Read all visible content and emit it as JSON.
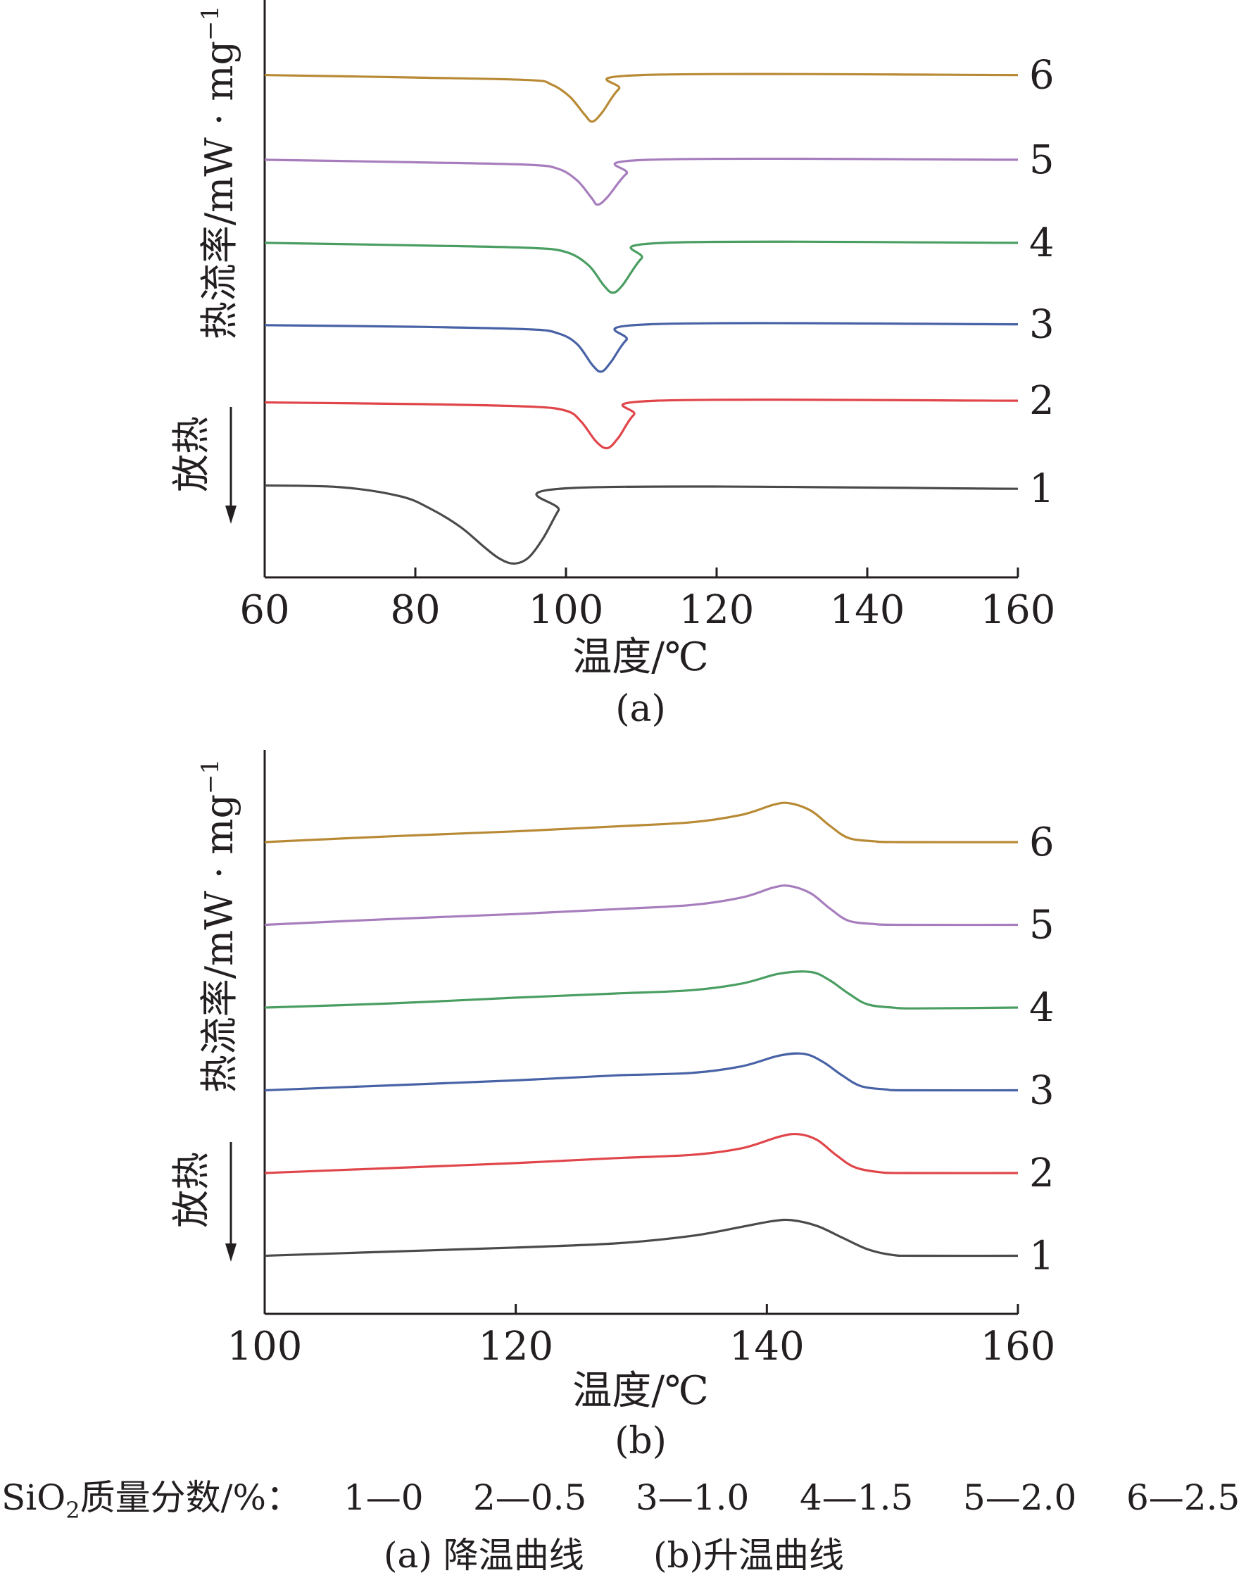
{
  "colors": {
    "axis": "#231f20",
    "text": "#231f20",
    "s1": "#4a4a4a",
    "s2": "#e0454a",
    "s3": "#4862a6",
    "s4": "#4a9e62",
    "s5": "#a77dbd",
    "s6": "#b88a35"
  },
  "chart_data": [
    {
      "type": "line",
      "panel_label": "(a)",
      "xlabel": "温度/℃",
      "ylabel": "热流率/mW · mg",
      "ylabel_sup": "−1",
      "exo_label": "放热",
      "xlim": [
        60,
        160
      ],
      "xticks": [
        "60",
        "80",
        "100",
        "120",
        "140",
        "160"
      ],
      "series": [
        {
          "name": "1",
          "color_key": "s1",
          "x": [
            60,
            70,
            78,
            82,
            86,
            89,
            91,
            93,
            95,
            97,
            99,
            101,
            160
          ],
          "y": [
            1.25,
            1.23,
            1.12,
            0.97,
            0.75,
            0.52,
            0.38,
            0.31,
            0.38,
            0.62,
            0.95,
            1.22,
            1.21
          ]
        },
        {
          "name": "2",
          "color_key": "s2",
          "x": [
            60,
            80,
            95,
            100,
            102,
            104,
            105.5,
            107,
            109,
            112,
            160
          ],
          "y": [
            2.25,
            2.23,
            2.2,
            2.15,
            2.02,
            1.78,
            1.7,
            1.83,
            2.1,
            2.27,
            2.27
          ]
        },
        {
          "name": "3",
          "color_key": "s3",
          "x": [
            60,
            80,
            95,
            99,
            101.5,
            103.5,
            104.7,
            106,
            108,
            111,
            160
          ],
          "y": [
            3.18,
            3.16,
            3.13,
            3.08,
            2.95,
            2.7,
            2.62,
            2.74,
            3.0,
            3.19,
            3.19
          ]
        },
        {
          "name": "4",
          "color_key": "s4",
          "x": [
            60,
            80,
            95,
            100,
            103,
            105,
            106.2,
            107.5,
            110,
            113,
            160
          ],
          "y": [
            4.17,
            4.14,
            4.11,
            4.06,
            3.9,
            3.66,
            3.57,
            3.66,
            3.98,
            4.17,
            4.17
          ]
        },
        {
          "name": "5",
          "color_key": "s5",
          "x": [
            60,
            80,
            95,
            99,
            101.5,
            103.4,
            104.2,
            105.5,
            108,
            111,
            160
          ],
          "y": [
            5.17,
            5.14,
            5.11,
            5.06,
            4.92,
            4.71,
            4.63,
            4.72,
            5.0,
            5.17,
            5.17
          ]
        },
        {
          "name": "6",
          "color_key": "s6",
          "x": [
            60,
            80,
            95,
            98,
            100.5,
            102.5,
            103.5,
            104.8,
            107,
            110,
            160
          ],
          "y": [
            6.19,
            6.16,
            6.13,
            6.08,
            5.93,
            5.71,
            5.63,
            5.74,
            6.02,
            6.19,
            6.19
          ]
        }
      ]
    },
    {
      "type": "line",
      "panel_label": "(b)",
      "xlabel": "温度/℃",
      "ylabel": "热流率/mW · mg",
      "ylabel_sup": "−1",
      "exo_label": "放热",
      "xlim": [
        100,
        160
      ],
      "xticks": [
        "100",
        "120",
        "140",
        "160"
      ],
      "series": [
        {
          "name": "1",
          "color_key": "s1",
          "x": [
            100,
            110,
            120,
            128,
            134,
            138,
            140.5,
            142,
            144,
            146,
            148,
            150,
            152,
            160
          ],
          "y": [
            1.0,
            1.05,
            1.1,
            1.15,
            1.24,
            1.35,
            1.42,
            1.43,
            1.36,
            1.22,
            1.08,
            1.01,
            1.0,
            1.0
          ]
        },
        {
          "name": "2",
          "color_key": "s2",
          "x": [
            100,
            110,
            120,
            128,
            134,
            138,
            141,
            142.5,
            144,
            145.5,
            147,
            149,
            151,
            160
          ],
          "y": [
            2.0,
            2.06,
            2.12,
            2.18,
            2.22,
            2.3,
            2.44,
            2.47,
            2.4,
            2.22,
            2.07,
            2.01,
            2.0,
            2.0
          ]
        },
        {
          "name": "3",
          "color_key": "s3",
          "x": [
            100,
            110,
            120,
            128,
            134,
            138,
            141,
            143,
            144.5,
            146,
            147.5,
            149.5,
            151,
            160
          ],
          "y": [
            3.0,
            3.06,
            3.12,
            3.18,
            3.21,
            3.29,
            3.42,
            3.44,
            3.34,
            3.18,
            3.05,
            3.01,
            3.0,
            3.0
          ]
        },
        {
          "name": "4",
          "color_key": "s4",
          "x": [
            100,
            110,
            120,
            128,
            134,
            138,
            141,
            143.5,
            145,
            146.5,
            148,
            150,
            152,
            160
          ],
          "y": [
            4.0,
            4.05,
            4.12,
            4.17,
            4.21,
            4.29,
            4.41,
            4.43,
            4.33,
            4.17,
            4.04,
            4.0,
            3.99,
            4.0
          ]
        },
        {
          "name": "5",
          "color_key": "s5",
          "x": [
            100,
            110,
            120,
            128,
            134,
            138,
            140.5,
            141.8,
            143.5,
            145,
            146.5,
            148.5,
            150.5,
            160
          ],
          "y": [
            5.0,
            5.07,
            5.13,
            5.19,
            5.24,
            5.33,
            5.45,
            5.47,
            5.38,
            5.2,
            5.05,
            5.01,
            5.0,
            5.0
          ]
        },
        {
          "name": "6",
          "color_key": "s6",
          "x": [
            100,
            110,
            120,
            128,
            134,
            138,
            140.5,
            141.8,
            143.5,
            145,
            146.5,
            148.5,
            150.5,
            160
          ],
          "y": [
            6.0,
            6.07,
            6.13,
            6.19,
            6.24,
            6.33,
            6.45,
            6.47,
            6.38,
            6.2,
            6.05,
            6.01,
            6.0,
            6.0
          ]
        }
      ]
    }
  ],
  "legend_text": {
    "si": "SiO",
    "sub": "2",
    "rest": "质量分数/%：",
    "items": [
      "1—0",
      "2—0.5",
      "3—1.0",
      "4—1.5",
      "5—2.0",
      "6—2.5"
    ]
  },
  "caption": {
    "a": "(a) 降温曲线",
    "b": "(b)升温曲线"
  }
}
